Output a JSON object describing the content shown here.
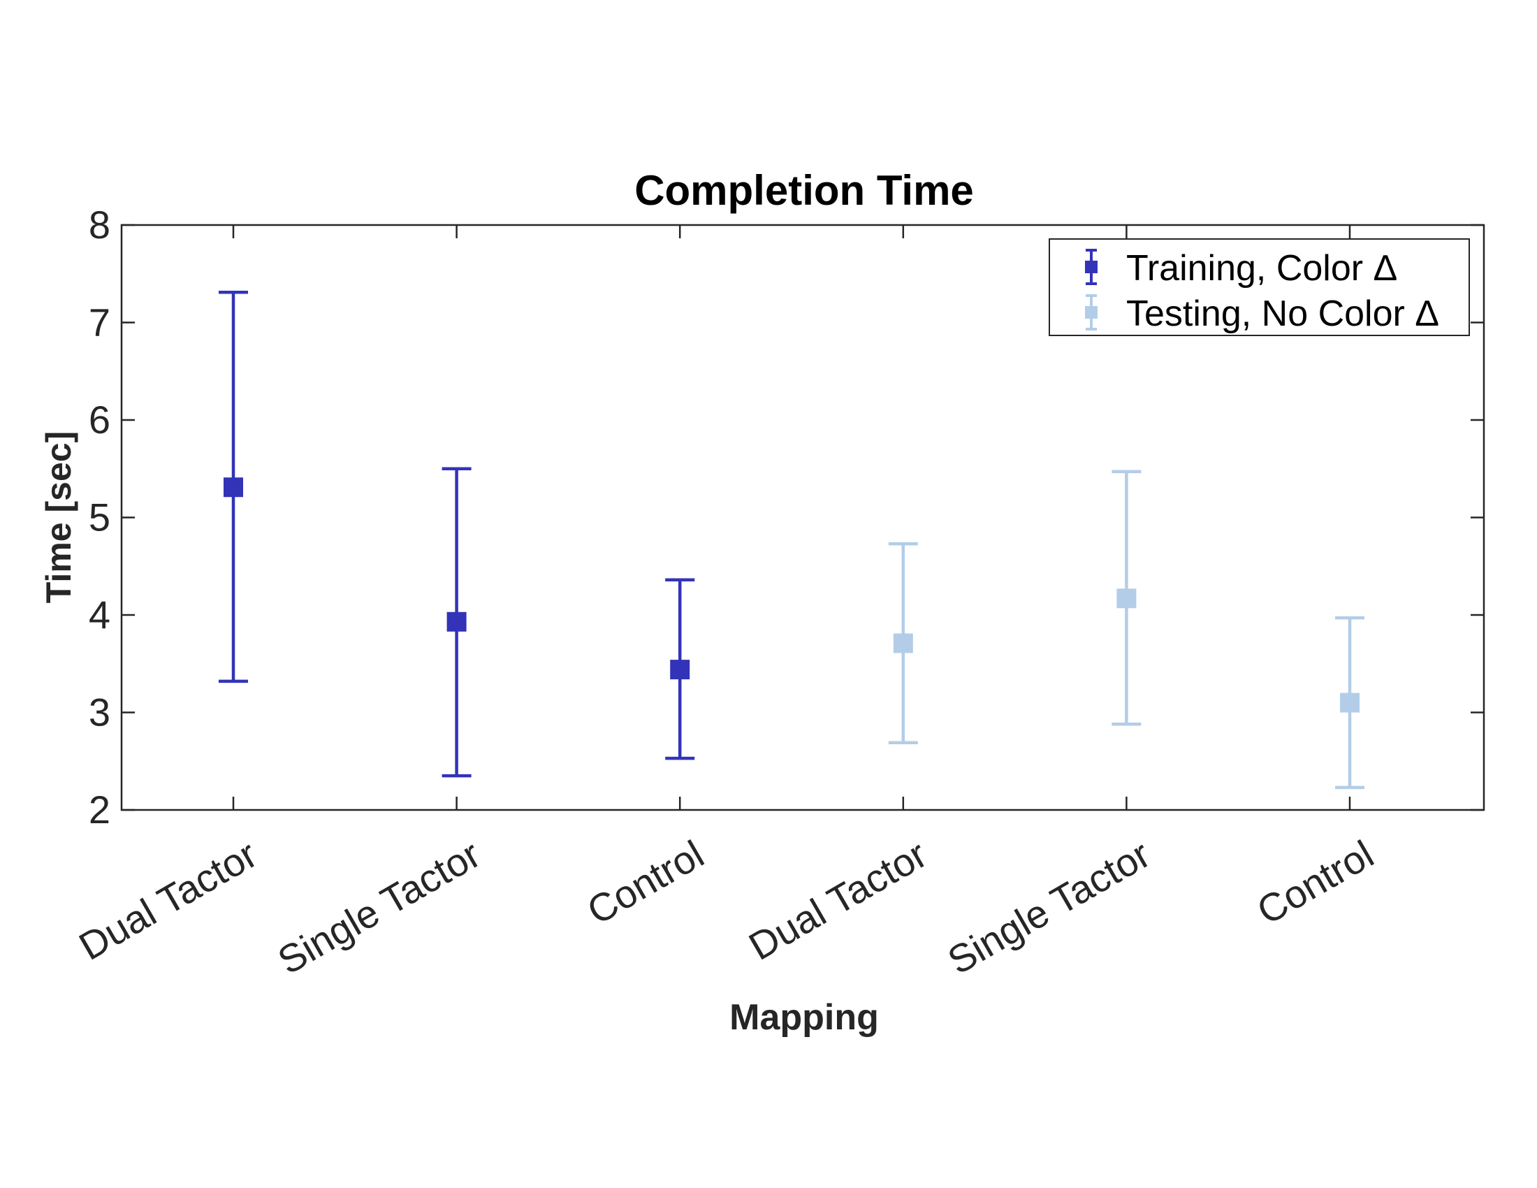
{
  "chart_data": {
    "type": "scatter",
    "title": "Completion Time",
    "xlabel": "Mapping",
    "ylabel": "Time [sec]",
    "categories": [
      "Dual Tactor",
      "Single Tactor",
      "Control",
      "Dual Tactor",
      "Single Tactor",
      "Control"
    ],
    "yticks": [
      "2",
      "3",
      "4",
      "5",
      "6",
      "7",
      "8"
    ],
    "ylim": [
      2,
      8
    ],
    "grid": false,
    "legend_position": "top-right",
    "series": [
      {
        "name": "Training, Color Δ",
        "color": "#3333b8",
        "points": [
          {
            "x_index": 0,
            "y": 5.31,
            "low": 3.32,
            "high": 7.31
          },
          {
            "x_index": 1,
            "y": 3.93,
            "low": 2.35,
            "high": 5.5
          },
          {
            "x_index": 2,
            "y": 3.44,
            "low": 2.53,
            "high": 4.36
          }
        ]
      },
      {
        "name": "Testing, No Color Δ",
        "color": "#b3cde8",
        "points": [
          {
            "x_index": 3,
            "y": 3.71,
            "low": 2.69,
            "high": 4.73
          },
          {
            "x_index": 4,
            "y": 4.17,
            "low": 2.88,
            "high": 5.47
          },
          {
            "x_index": 5,
            "y": 3.1,
            "low": 2.23,
            "high": 3.97
          }
        ]
      }
    ]
  }
}
